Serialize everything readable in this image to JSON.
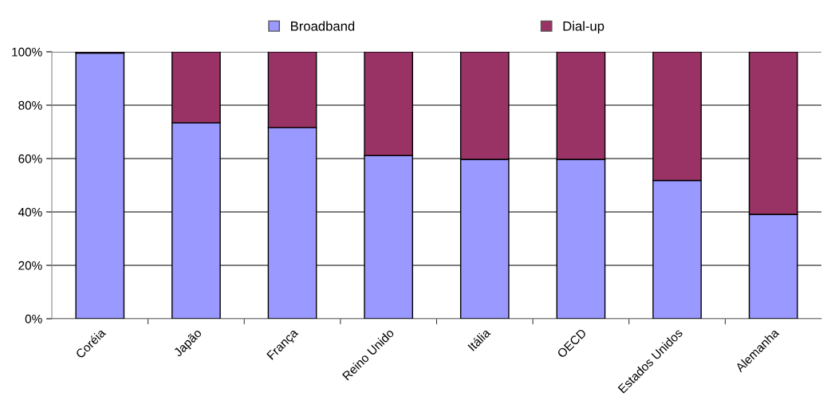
{
  "chart_data": {
    "type": "bar",
    "stacked": true,
    "categories": [
      "Coréia",
      "Japão",
      "França",
      "Reino Unido",
      "Itália",
      "OECD",
      "Estados Unidos",
      "Alemanha"
    ],
    "series": [
      {
        "name": "Broadband",
        "color": "#9999ff",
        "values": [
          99.5,
          73.4,
          71.6,
          61.1,
          59.7,
          59.7,
          51.8,
          39.1
        ]
      },
      {
        "name": "Dial-up",
        "color": "#993366",
        "values": [
          0.5,
          26.6,
          28.4,
          38.9,
          40.3,
          40.3,
          48.2,
          60.9
        ]
      }
    ],
    "ylim": [
      0,
      100
    ],
    "yticks": [
      {
        "value": 0,
        "label": "0%"
      },
      {
        "value": 20,
        "label": "20%"
      },
      {
        "value": 40,
        "label": "40%"
      },
      {
        "value": 60,
        "label": "60%"
      },
      {
        "value": 80,
        "label": "80%"
      },
      {
        "value": 100,
        "label": "100%"
      }
    ],
    "grid": "y",
    "legend": "top"
  }
}
